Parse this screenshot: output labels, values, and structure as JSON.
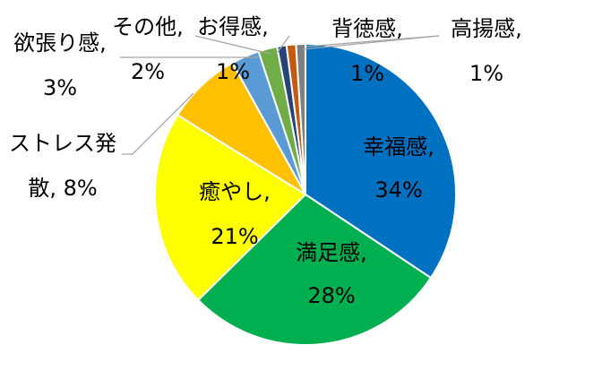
{
  "chart_data": {
    "type": "pie",
    "start_angle_deg": 0,
    "direction": "clockwise",
    "slices": [
      {
        "name": "幸福感",
        "value": 34,
        "label": "34%",
        "color": "#0070C0"
      },
      {
        "name": "満足感",
        "value": 28,
        "label": "28%",
        "color": "#00B050"
      },
      {
        "name": "癒やし",
        "value": 21,
        "label": "21%",
        "color": "#FFFF00"
      },
      {
        "name": "ストレス発散",
        "value": 8,
        "label": "8%",
        "color": "#FFC000"
      },
      {
        "name": "欲張り感",
        "value": 3,
        "label": "3%",
        "color": "#5B9BD5"
      },
      {
        "name": "その他",
        "value": 2,
        "label": "2%",
        "color": "#70AD47"
      },
      {
        "name": "お得感",
        "value": 1,
        "label": "1%",
        "color": "#264478"
      },
      {
        "name": "背徳感",
        "value": 1,
        "label": "1%",
        "color": "#C55A11"
      },
      {
        "name": "高揚感",
        "value": 1,
        "label": "1%",
        "color": "#7F7F7F"
      }
    ],
    "legend": "none"
  }
}
